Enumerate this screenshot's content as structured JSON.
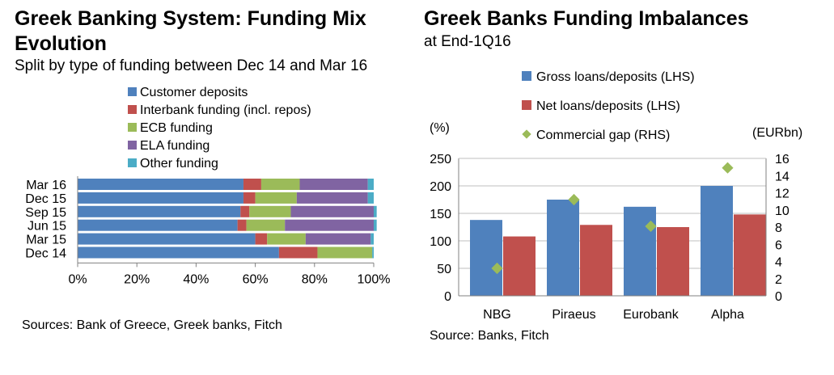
{
  "chart_data": [
    {
      "type": "bar",
      "orientation": "horizontal",
      "stacked": true,
      "title": "Greek Banking System: Funding Mix Evolution",
      "subtitle": "Split by type of funding between Dec 14 and Mar 16",
      "source": "Sources: Bank of Greece, Greek banks, Fitch",
      "categories": [
        "Mar 16",
        "Dec 15",
        "Sep 15",
        "Jun 15",
        "Mar 15",
        "Dec 14"
      ],
      "xlim": [
        0,
        100
      ],
      "x_ticks": [
        "0%",
        "20%",
        "40%",
        "60%",
        "80%",
        "100%"
      ],
      "legend_position": "top",
      "series": [
        {
          "name": "Customer deposits",
          "color": "#4f81bd",
          "values": [
            56,
            56,
            55,
            54,
            60,
            68
          ]
        },
        {
          "name": "Interbank funding (incl. repos)",
          "color": "#c0504d",
          "values": [
            6,
            4,
            3,
            3,
            4,
            13
          ]
        },
        {
          "name": "ECB funding",
          "color": "#9bbb59",
          "values": [
            13,
            14,
            14,
            13,
            13,
            18.5
          ]
        },
        {
          "name": "ELA funding",
          "color": "#8064a2",
          "values": [
            23,
            24,
            28,
            30,
            22,
            0
          ]
        },
        {
          "name": "Other funding",
          "color": "#4bacc6",
          "values": [
            2,
            2,
            1,
            1,
            1,
            0.5
          ]
        }
      ]
    },
    {
      "type": "bar",
      "title": "Greek Banks Funding Imbalances",
      "subtitle": "at End-1Q16",
      "source": "Source: Banks, Fitch",
      "categories": [
        "NBG",
        "Piraeus",
        "Eurobank",
        "Alpha"
      ],
      "ylabel_left": "(%)",
      "ylabel_right": "(EURbn)",
      "ylim_left": [
        0,
        250
      ],
      "ylim_right": [
        0,
        16
      ],
      "y_ticks_left": [
        "0",
        "50",
        "100",
        "150",
        "200",
        "250"
      ],
      "y_ticks_right": [
        "0",
        "2",
        "4",
        "6",
        "8",
        "10",
        "12",
        "14",
        "16"
      ],
      "grid": true,
      "legend_position": "top",
      "series": [
        {
          "name": "Gross loans/deposits (LHS)",
          "kind": "bar",
          "axis": "left",
          "color": "#4f81bd",
          "values": [
            138,
            175,
            162,
            200
          ]
        },
        {
          "name": "Net loans/deposits (LHS)",
          "kind": "bar",
          "axis": "left",
          "color": "#c0504d",
          "values": [
            108,
            129,
            125,
            148
          ]
        },
        {
          "name": "Commercial gap (RHS)",
          "kind": "marker",
          "axis": "right",
          "color": "#9bbb59",
          "values": [
            3.2,
            11.2,
            8.1,
            14.9
          ]
        }
      ]
    }
  ]
}
